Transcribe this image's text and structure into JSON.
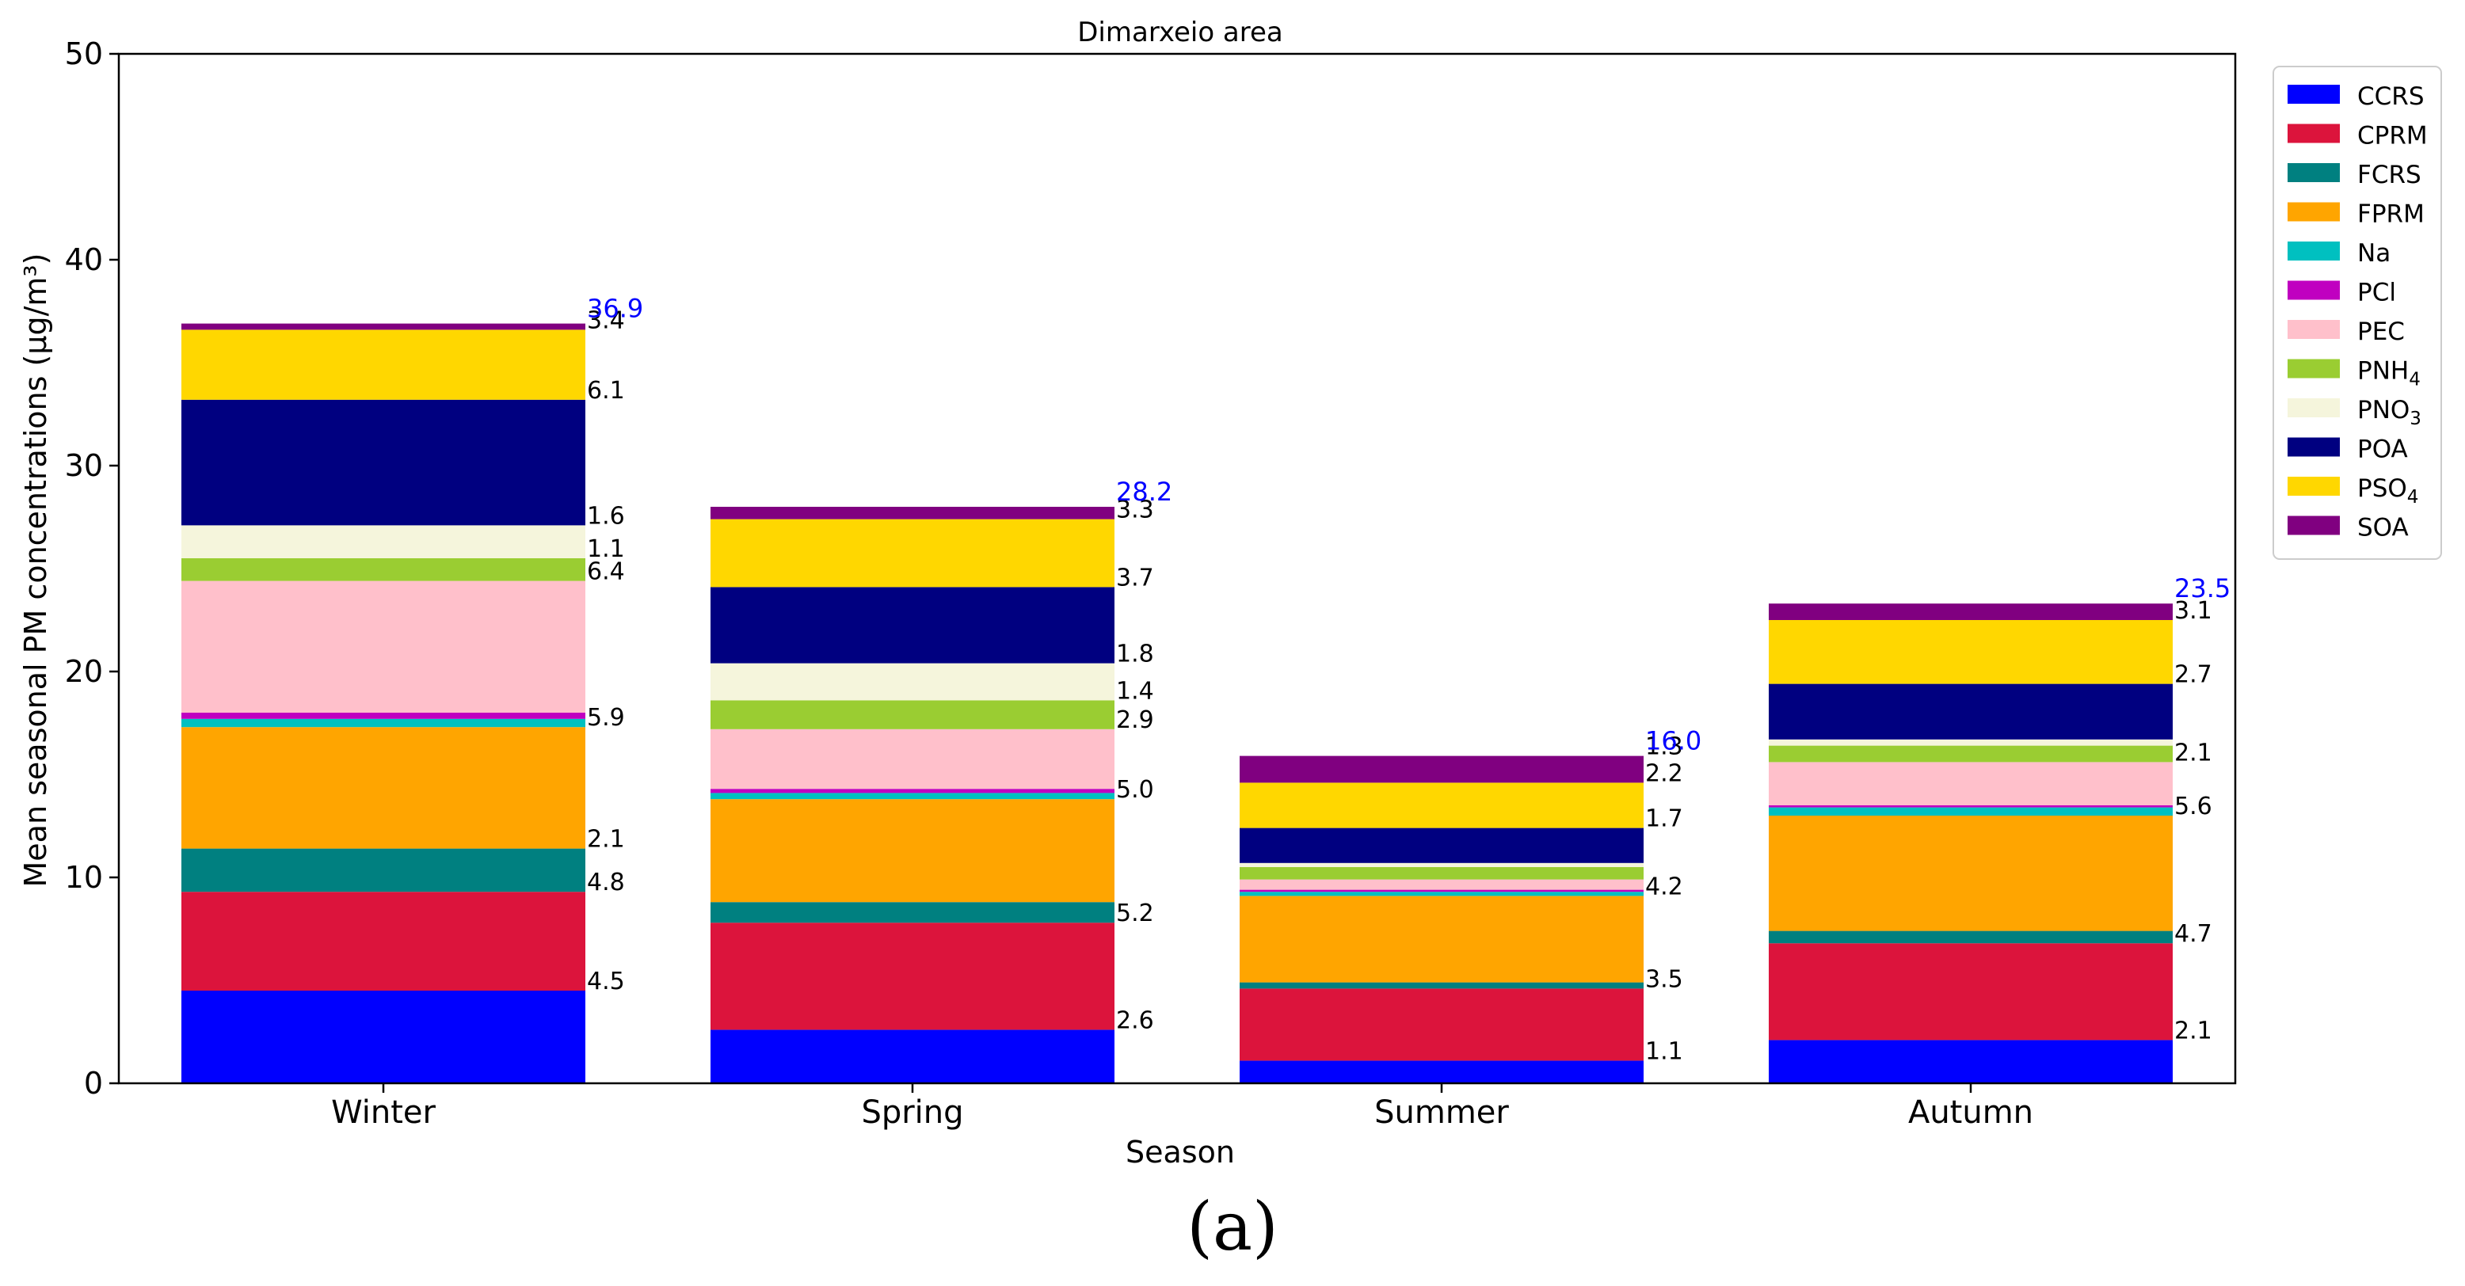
{
  "chart_data": {
    "type": "bar",
    "stacked": true,
    "title": "Dimarxeio area",
    "xlabel": "Season",
    "ylabel": "Mean seasonal PM concentrations (μg/m³)",
    "ylim": [
      0,
      50
    ],
    "yticks": [
      0,
      10,
      20,
      30,
      40,
      50
    ],
    "grid": false,
    "legend_position": "top-right (outside plot)",
    "categories": [
      "Winter",
      "Spring",
      "Summer",
      "Autumn"
    ],
    "totals": [
      36.9,
      28.2,
      16.0,
      23.5
    ],
    "totals_labels": [
      "36.9",
      "28.2",
      "16.0",
      "23.5"
    ],
    "series": [
      {
        "name": "CCRS",
        "name_main": "CCRS",
        "name_sub": "",
        "color": "#0000FF",
        "values": [
          4.5,
          2.6,
          1.1,
          2.1
        ],
        "labels": [
          "4.5",
          "2.6",
          "1.1",
          "2.1"
        ]
      },
      {
        "name": "CPRM",
        "name_main": "CPRM",
        "name_sub": "",
        "color": "#DC143C",
        "values": [
          4.8,
          5.2,
          3.5,
          4.7
        ],
        "labels": [
          "4.8",
          "5.2",
          "3.5",
          "4.7"
        ]
      },
      {
        "name": "FCRS",
        "name_main": "FCRS",
        "name_sub": "",
        "color": "#008080",
        "values": [
          2.1,
          1.0,
          0.3,
          0.6
        ],
        "labels": [
          "2.1",
          "",
          "",
          ""
        ]
      },
      {
        "name": "FPRM",
        "name_main": "FPRM",
        "name_sub": "",
        "color": "#FFA500",
        "values": [
          5.9,
          5.0,
          4.2,
          5.6
        ],
        "labels": [
          "5.9",
          "5.0",
          "4.2",
          "5.6"
        ]
      },
      {
        "name": "Na",
        "name_main": "Na",
        "name_sub": "",
        "color": "#00C0C0",
        "values": [
          0.4,
          0.3,
          0.2,
          0.4
        ],
        "labels": [
          "",
          "",
          "",
          ""
        ]
      },
      {
        "name": "PCl",
        "name_main": "PCl",
        "name_sub": "",
        "color": "#C000C0",
        "values": [
          0.3,
          0.2,
          0.1,
          0.1
        ],
        "labels": [
          "",
          "",
          "",
          ""
        ]
      },
      {
        "name": "PEC",
        "name_main": "PEC",
        "name_sub": "",
        "color": "#FFC0CB",
        "values": [
          6.4,
          2.9,
          0.5,
          2.1
        ],
        "labels": [
          "6.4",
          "2.9",
          "",
          "2.1"
        ]
      },
      {
        "name": "PNH4",
        "name_main": "PNH",
        "name_sub": "4",
        "color": "#9ACD32",
        "values": [
          1.1,
          1.4,
          0.6,
          0.8
        ],
        "labels": [
          "1.1",
          "1.4",
          "",
          ""
        ]
      },
      {
        "name": "PNO3",
        "name_main": "PNO",
        "name_sub": "3",
        "color": "#F5F5DC",
        "values": [
          1.6,
          1.8,
          0.2,
          0.3
        ],
        "labels": [
          "1.6",
          "1.8",
          "",
          ""
        ]
      },
      {
        "name": "POA",
        "name_main": "POA",
        "name_sub": "",
        "color": "#000080",
        "values": [
          6.1,
          3.7,
          1.7,
          2.7
        ],
        "labels": [
          "6.1",
          "3.7",
          "1.7",
          "2.7"
        ]
      },
      {
        "name": "PSO4",
        "name_main": "PSO",
        "name_sub": "4",
        "color": "#FFD700",
        "values": [
          3.4,
          3.3,
          2.2,
          3.1
        ],
        "labels": [
          "3.4",
          "3.3",
          "2.2",
          "3.1"
        ]
      },
      {
        "name": "SOA",
        "name_main": "SOA",
        "name_sub": "",
        "color": "#800080",
        "values": [
          0.3,
          0.6,
          1.3,
          0.8
        ],
        "labels": [
          "",
          "",
          "1.3",
          ""
        ]
      }
    ]
  },
  "panel_label": "(a)",
  "colors": {
    "total_label": "#0000FF",
    "axis": "#000000"
  }
}
